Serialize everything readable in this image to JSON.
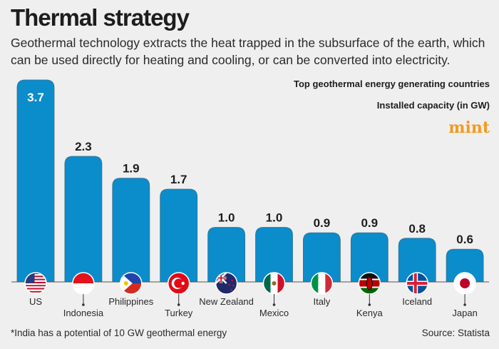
{
  "header": {
    "title": "Thermal strategy",
    "subtitle": "Geothermal technology extracts the heat trapped in the subsurface of the earth, which can be used directly for heating and cooling, or can be converted into electricity.",
    "logo": "mint"
  },
  "footer": {
    "note": "*India has a potential of 10 GW geothermal energy",
    "source": "Source: Statista"
  },
  "colors": {
    "bar": "#0b8ccb",
    "background": "#efefef",
    "logo": "#f39a1d"
  },
  "chart_data": {
    "type": "bar",
    "title": "Top geothermal energy generating countries",
    "ylabel": "Installed capacity (in GW)",
    "categories": [
      "US",
      "Indonesia",
      "Philippines",
      "Turkey",
      "New Zealand",
      "Mexico",
      "Italy",
      "Kenya",
      "Iceland",
      "Japan"
    ],
    "values": [
      3.7,
      2.3,
      1.9,
      1.7,
      1.0,
      1.0,
      0.9,
      0.9,
      0.8,
      0.6
    ],
    "value_labels": [
      "3.7",
      "2.3",
      "1.9",
      "1.7",
      "1.0",
      "1.0",
      "0.9",
      "0.9",
      "0.8",
      "0.6"
    ],
    "flag_icons": [
      "us-flag-icon",
      "indonesia-flag-icon",
      "philippines-flag-icon",
      "turkey-flag-icon",
      "new-zealand-flag-icon",
      "mexico-flag-icon",
      "italy-flag-icon",
      "kenya-flag-icon",
      "iceland-flag-icon",
      "japan-flag-icon"
    ],
    "ylim": [
      0,
      3.7
    ],
    "grid": false,
    "legend": "none"
  }
}
